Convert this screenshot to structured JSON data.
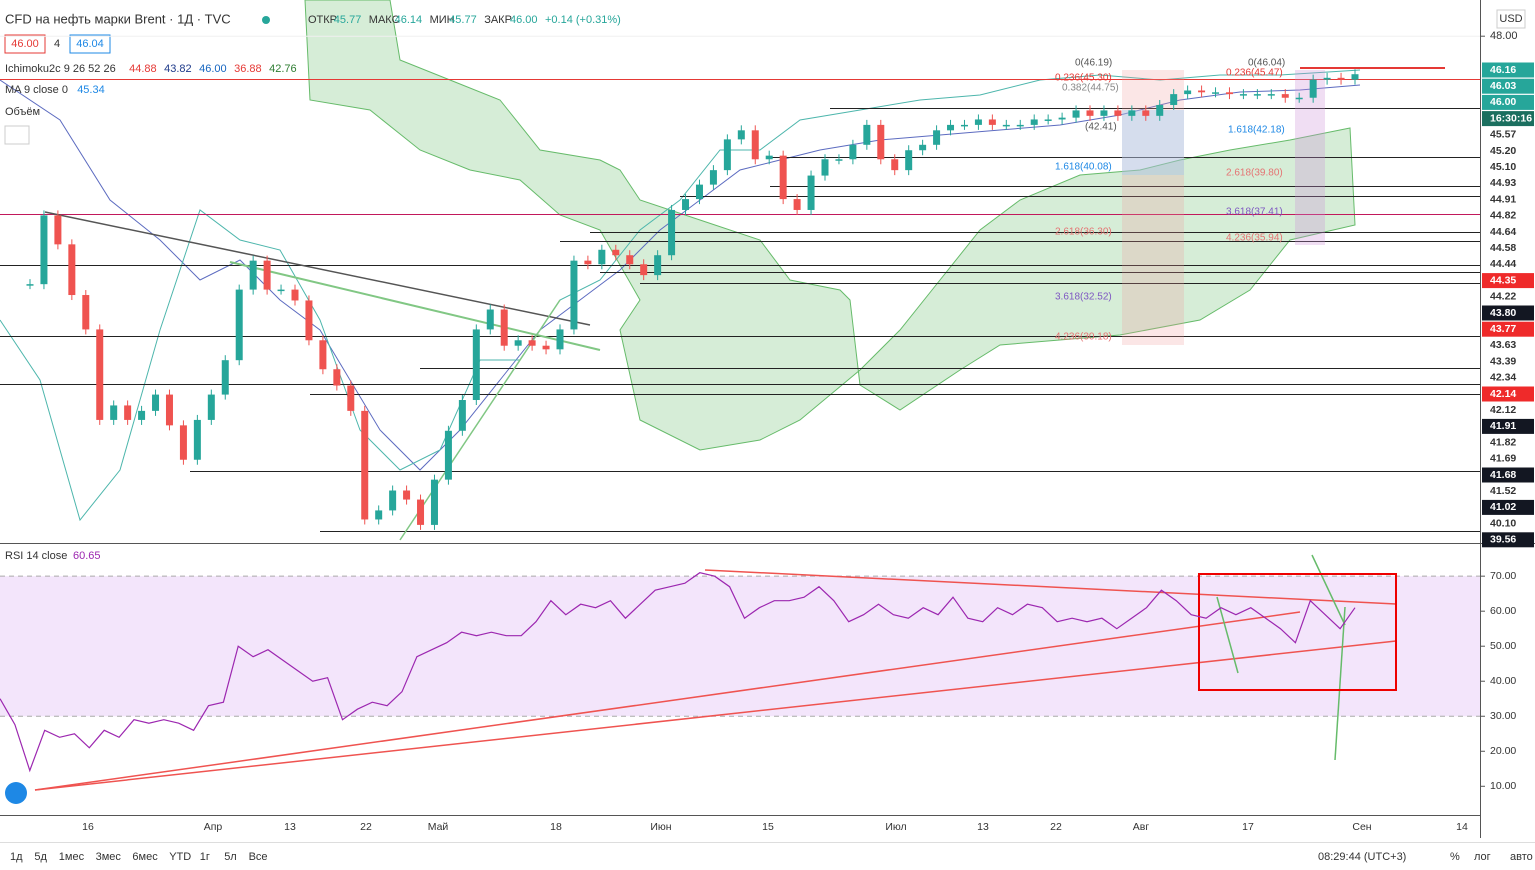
{
  "header": {
    "title": "CFD на нефть марки Brent · 1Д · TVC",
    "ohlc": [
      {
        "label": "ОТКР",
        "value": "45.77"
      },
      {
        "label": "МАКС",
        "value": "46.14"
      },
      {
        "label": "МИН",
        "value": "45.77"
      },
      {
        "label": "ЗАКР",
        "value": "46.00"
      }
    ],
    "change": "+0.14 (+0.31%)",
    "sell": "46.00",
    "spread": "4",
    "buy": "46.04"
  },
  "indicators": [
    {
      "name": "Ichimoku2c 9 26 52 26",
      "values": [
        {
          "text": "44.88",
          "color": "#e53935"
        },
        {
          "text": "43.82",
          "color": "#1e3a8a"
        },
        {
          "text": "46.00",
          "color": "#1565c0"
        },
        {
          "text": "36.88",
          "color": "#e53935"
        },
        {
          "text": "42.76",
          "color": "#2e7d32"
        }
      ]
    },
    {
      "name": "MA 9 close 0",
      "values": [
        {
          "text": "45.34",
          "color": "#1e88e5"
        }
      ]
    },
    {
      "name": "Объём",
      "values": []
    }
  ],
  "currency": "USD",
  "price_labels": [
    {
      "text": "46.16",
      "kind": "green"
    },
    {
      "text": "46.03",
      "kind": "green"
    },
    {
      "text": "46.00",
      "kind": "green"
    },
    {
      "text": "16:30:16",
      "kind": "teal"
    },
    {
      "text": "45.57",
      "kind": "plain"
    },
    {
      "text": "45.20",
      "kind": "plain"
    },
    {
      "text": "45.10",
      "kind": "plain"
    },
    {
      "text": "44.93",
      "kind": "plain"
    },
    {
      "text": "44.91",
      "kind": "plain"
    },
    {
      "text": "44.82",
      "kind": "plain"
    },
    {
      "text": "44.64",
      "kind": "plain"
    },
    {
      "text": "44.58",
      "kind": "plain"
    },
    {
      "text": "44.44",
      "kind": "plain"
    },
    {
      "text": "44.35",
      "kind": "red"
    },
    {
      "text": "44.22",
      "kind": "plain"
    },
    {
      "text": "43.80",
      "kind": "dark"
    },
    {
      "text": "43.77",
      "kind": "red"
    },
    {
      "text": "43.63",
      "kind": "plain"
    },
    {
      "text": "43.39",
      "kind": "plain"
    },
    {
      "text": "42.34",
      "kind": "plain"
    },
    {
      "text": "42.14",
      "kind": "red"
    },
    {
      "text": "42.12",
      "kind": "plain"
    },
    {
      "text": "41.91",
      "kind": "dark"
    },
    {
      "text": "41.82",
      "kind": "plain"
    },
    {
      "text": "41.69",
      "kind": "plain"
    },
    {
      "text": "41.68",
      "kind": "dark"
    },
    {
      "text": "41.52",
      "kind": "plain"
    },
    {
      "text": "41.02",
      "kind": "dark"
    },
    {
      "text": "40.10",
      "kind": "plain"
    },
    {
      "text": "39.56",
      "kind": "dark"
    }
  ],
  "fib_labels": [
    "0(46.19)",
    "0.236(45.30)",
    "0.382(44.75)",
    "1.618(40.08)",
    "2.618(36.30)",
    "3.618(32.52)",
    "4.236(30.18)",
    "(42.41)",
    "0(46.04)",
    "0.236(45.47)",
    "1.618(42.18)",
    "2.618(39.80)",
    "3.618(37.41)",
    "4.236(35.94)"
  ],
  "time_labels": [
    "16",
    "Апр",
    "13",
    "22",
    "Май",
    "18",
    "Июн",
    "15",
    "Июл",
    "13",
    "22",
    "Авг",
    "17",
    "Сен",
    "14"
  ],
  "chart_data": [
    {
      "type": "candlestick",
      "up_color": "#26a69a",
      "down_color": "#ef5350",
      "ylim": [
        20,
        50
      ],
      "yticks": [
        {
          "value": 48,
          "label": "48.00"
        }
      ],
      "values": [
        34.3,
        38.1,
        36.5,
        33.7,
        31.8,
        26.8,
        27.6,
        26.8,
        27.3,
        28.2,
        26.5,
        24.6,
        26.8,
        28.2,
        30.1,
        34.0,
        35.6,
        34.0,
        34.0,
        33.4,
        31.2,
        29.6,
        28.7,
        27.3,
        21.3,
        21.8,
        22.9,
        22.4,
        21.0,
        23.5,
        26.2,
        27.9,
        31.8,
        32.9,
        30.9,
        31.2,
        30.9,
        30.7,
        31.8,
        35.6,
        35.4,
        36.2,
        35.9,
        35.4,
        34.8,
        35.9,
        38.4,
        39.0,
        39.8,
        40.6,
        42.3,
        42.8,
        41.2,
        41.4,
        39.0,
        38.4,
        40.3,
        41.2,
        41.2,
        42.0,
        43.1,
        41.2,
        40.6,
        41.7,
        42.0,
        42.8,
        43.1,
        43.1,
        43.4,
        43.1,
        43.1,
        43.1,
        43.4,
        43.4,
        43.5,
        43.9,
        43.6,
        43.9,
        43.6,
        43.9,
        43.6,
        44.2,
        44.8,
        45.0,
        44.9,
        44.9,
        44.8,
        44.8,
        44.8,
        44.8,
        44.6,
        44.6,
        45.6,
        45.7,
        45.6,
        45.9
      ]
    },
    {
      "type": "line",
      "title": "RSI 14 close",
      "last_label": "60.65",
      "color": "#9c27b0",
      "ylim": [
        1.8,
        78.9
      ],
      "band": [
        30,
        70
      ],
      "band_color": "#f3e5fb",
      "yticks": [
        {
          "value": 70,
          "label": "70.00"
        },
        {
          "value": 60,
          "label": "60.00"
        },
        {
          "value": 50,
          "label": "50.00"
        },
        {
          "value": 40,
          "label": "40.00"
        },
        {
          "value": 30,
          "label": "30.00"
        },
        {
          "value": 20,
          "label": "20.00"
        },
        {
          "value": 10,
          "label": "10.00"
        }
      ],
      "values": [
        35,
        27.6,
        14.5,
        26,
        24,
        25,
        21,
        26,
        24,
        29,
        28,
        29,
        28,
        26,
        33,
        34,
        50,
        47,
        49,
        46,
        43,
        40,
        41,
        29,
        32,
        34,
        33,
        37,
        47,
        49,
        51,
        54,
        53,
        54,
        53,
        53,
        57,
        63,
        59,
        62,
        61,
        63,
        58,
        62,
        66,
        67,
        68,
        71,
        70,
        67,
        58,
        61,
        63,
        63,
        64,
        67,
        63,
        57,
        59,
        62,
        59,
        58,
        61,
        59,
        64,
        58,
        57,
        61,
        59,
        62,
        61,
        57,
        58,
        57,
        58,
        55,
        58,
        61,
        66,
        63,
        59,
        58,
        61,
        59,
        61,
        58,
        55,
        51,
        63,
        59,
        55,
        61
      ]
    }
  ],
  "toolbar": {
    "ranges": [
      "1д",
      "5д",
      "1мес",
      "3мес",
      "6мес",
      "YTD",
      "1г",
      "5л",
      "Все"
    ],
    "clock": "08:29:44 (UTC+3)",
    "options": [
      "%",
      "лог",
      "авто"
    ]
  }
}
